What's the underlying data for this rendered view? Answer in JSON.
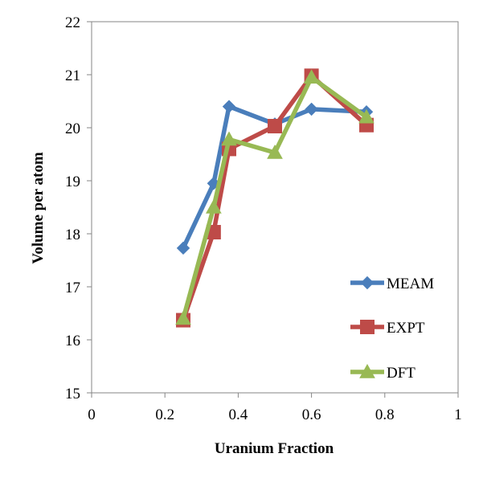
{
  "chart_data": {
    "type": "line",
    "xlabel": "Uranium Fraction",
    "ylabel": "Volume per atom",
    "xlim": [
      0,
      1
    ],
    "ylim": [
      15,
      22
    ],
    "x_ticks": [
      "0",
      "0.2",
      "0.4",
      "0.6",
      "0.8",
      "1"
    ],
    "y_ticks": [
      "15",
      "16",
      "17",
      "18",
      "19",
      "20",
      "21",
      "22"
    ],
    "grid": false,
    "legend_position": "bottom-right",
    "series": [
      {
        "name": "MEAM",
        "color": "#4a7ebb",
        "marker": "diamond",
        "x": [
          0.25,
          0.333,
          0.375,
          0.5,
          0.6,
          0.75
        ],
        "y": [
          17.73,
          18.95,
          20.4,
          20.07,
          20.35,
          20.3
        ]
      },
      {
        "name": "EXPT",
        "color": "#be4b48",
        "marker": "square",
        "x": [
          0.25,
          0.333,
          0.375,
          0.5,
          0.6,
          0.75
        ],
        "y": [
          16.37,
          18.03,
          19.6,
          20.03,
          20.98,
          20.05
        ]
      },
      {
        "name": "DFT",
        "color": "#98b954",
        "marker": "triangle",
        "x": [
          0.25,
          0.333,
          0.375,
          0.5,
          0.6,
          0.75
        ],
        "y": [
          16.4,
          18.5,
          19.78,
          19.53,
          20.95,
          20.2
        ]
      }
    ]
  }
}
